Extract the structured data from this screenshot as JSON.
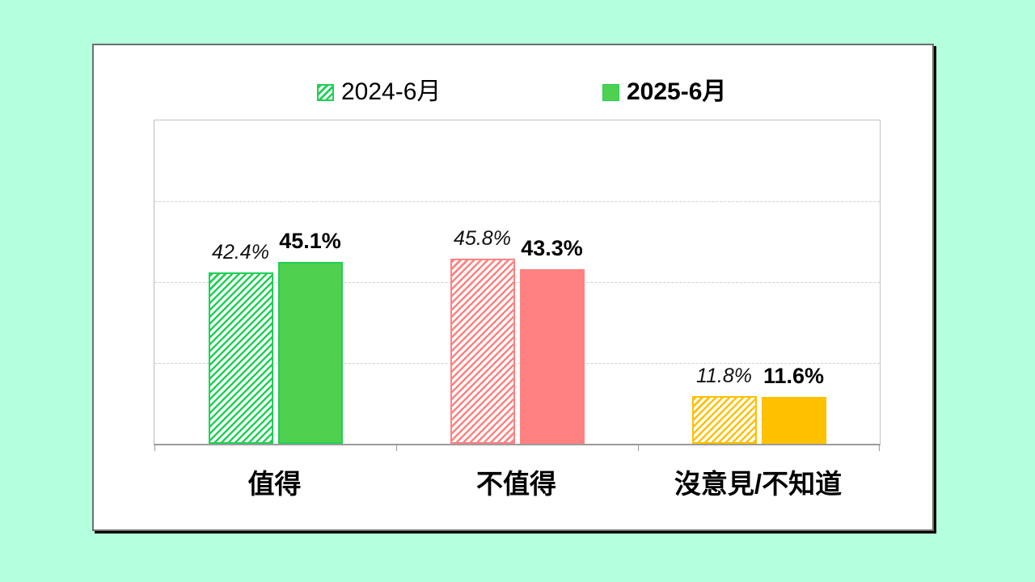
{
  "stage": {
    "background": "#b3ffde",
    "card_background": "#ffffff"
  },
  "legend": {
    "position": "top",
    "items": [
      {
        "label": "2024-6月",
        "swatch": "hatched-square-icon",
        "bold": false
      },
      {
        "label": "2025-6月",
        "swatch": "solid-square-icon",
        "bold": true
      }
    ],
    "swatch_fill": "#4fd14f",
    "swatch_pattern": "#1fd054"
  },
  "chart_data": {
    "type": "bar",
    "title": "",
    "categories": [
      "值得",
      "不值得",
      "沒意見/不知道"
    ],
    "series": [
      {
        "name": "2024-6月",
        "style": "hatched",
        "values": [
          42.4,
          45.8,
          11.8
        ],
        "labels": [
          "42.4%",
          "45.8%",
          "11.8%"
        ]
      },
      {
        "name": "2025-6月",
        "style": "solid",
        "values": [
          45.1,
          43.3,
          11.6
        ],
        "labels": [
          "45.1%",
          "43.3%",
          "11.6%"
        ]
      }
    ],
    "category_colors": [
      {
        "fill": "#4fd14f",
        "pattern": "#1fd054"
      },
      {
        "fill": "#ff8181",
        "pattern": "#ff8181"
      },
      {
        "fill": "#ffc000",
        "pattern": "#ffc000"
      }
    ],
    "ylabel": "",
    "xlabel": "",
    "ylim": [
      0,
      80
    ],
    "gridline_values": [
      20,
      40,
      60
    ],
    "grid_style": "dashed",
    "axis_color": "#9b9b9b",
    "gridline_color": "#cfcfcf",
    "legend_position": "top"
  }
}
